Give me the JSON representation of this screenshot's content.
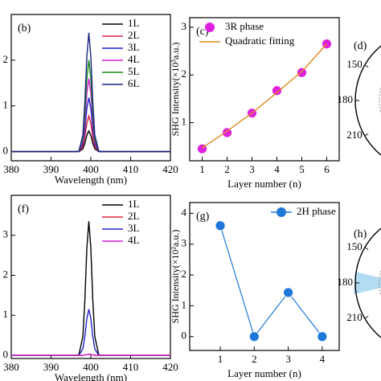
{
  "chart_data": [
    {
      "type": "line",
      "panel_label": "(b)",
      "xlabel": "Wavelength (nm)",
      "x": [
        380,
        396,
        397,
        398,
        398.5,
        399,
        399.5,
        400,
        400.5,
        401,
        402,
        403,
        420
      ],
      "xlim": [
        380,
        420
      ],
      "xticks": [
        380,
        390,
        400,
        410,
        420
      ],
      "ylim": [
        -0.2,
        3
      ],
      "yticks": [
        0,
        1,
        2
      ],
      "legend": "upper right",
      "series": [
        {
          "name": "1L",
          "color": "#000000",
          "values": [
            0,
            0,
            0,
            0.06,
            0.18,
            0.36,
            0.45,
            0.36,
            0.18,
            0.06,
            0,
            0,
            0
          ]
        },
        {
          "name": "2L",
          "color": "#e0203a",
          "values": [
            0,
            0,
            0,
            0.11,
            0.32,
            0.62,
            0.78,
            0.62,
            0.32,
            0.11,
            0,
            0,
            0
          ]
        },
        {
          "name": "3L",
          "color": "#2020c8",
          "values": [
            0,
            0,
            0,
            0.17,
            0.48,
            0.94,
            1.18,
            0.94,
            0.48,
            0.17,
            0,
            0,
            0
          ]
        },
        {
          "name": "4L",
          "color": "#d020d0",
          "values": [
            0,
            0,
            0.01,
            0.22,
            0.66,
            1.28,
            1.6,
            1.28,
            0.66,
            0.22,
            0.01,
            0,
            0
          ]
        },
        {
          "name": "5L",
          "color": "#1a8a1a",
          "values": [
            0,
            0,
            0.01,
            0.28,
            0.82,
            1.6,
            2.0,
            1.6,
            0.82,
            0.28,
            0.01,
            0,
            0
          ]
        },
        {
          "name": "6L",
          "color": "#1a237e",
          "values": [
            0,
            0,
            0.01,
            0.36,
            1.07,
            2.08,
            2.6,
            2.08,
            1.07,
            0.36,
            0.01,
            0,
            0
          ]
        }
      ]
    },
    {
      "type": "line",
      "panel_label": "(c)",
      "xlabel": "Layer number (n)",
      "ylabel": "SHG Intensity(×10³a.u.)",
      "x": [
        1,
        2,
        3,
        4,
        5,
        6
      ],
      "xlim": [
        0.5,
        6.5
      ],
      "xticks": [
        1,
        2,
        3,
        4,
        5,
        6
      ],
      "ylim": [
        0.2,
        3.2
      ],
      "yticks": [
        1,
        2,
        3
      ],
      "legend": "upper left",
      "series": [
        {
          "name": "3R phase",
          "color": "#e020e0",
          "markers": true,
          "line": false,
          "values": [
            0.45,
            0.79,
            1.2,
            1.67,
            2.05,
            2.65
          ]
        },
        {
          "name": "Quadratic fitting",
          "color": "#e08a1e",
          "markers": false,
          "line": true,
          "values": [
            0.47,
            0.82,
            1.2,
            1.63,
            2.07,
            2.65
          ]
        }
      ]
    },
    {
      "type": "polar",
      "panel_label": "(d)",
      "angle_ticks": [
        150,
        180,
        210
      ],
      "fill": false
    },
    {
      "type": "line",
      "panel_label": "(f)",
      "xlabel": "Wavelength (nm)",
      "x": [
        380,
        396,
        397,
        398,
        398.5,
        399,
        399.5,
        400,
        400.5,
        401,
        402,
        403,
        420
      ],
      "xlim": [
        380,
        420
      ],
      "xticks": [
        380,
        390,
        400,
        410,
        420
      ],
      "ylim": [
        -0.08,
        4
      ],
      "yticks": [
        0,
        1,
        2,
        3
      ],
      "legend": "upper right",
      "series": [
        {
          "name": "1L",
          "color": "#000000",
          "values": [
            0,
            0,
            0.01,
            0.47,
            1.37,
            2.68,
            3.35,
            2.68,
            1.37,
            0.47,
            0.01,
            0,
            0
          ]
        },
        {
          "name": "2L",
          "color": "#e0203a",
          "values": [
            0,
            0,
            0,
            0,
            0.01,
            0.02,
            0.03,
            0.02,
            0.01,
            0,
            0,
            0,
            0
          ]
        },
        {
          "name": "3L",
          "color": "#2020c8",
          "values": [
            0,
            0,
            0,
            0.16,
            0.47,
            0.92,
            1.15,
            0.92,
            0.47,
            0.16,
            0,
            0,
            0
          ]
        },
        {
          "name": "4L",
          "color": "#d020d0",
          "values": [
            0,
            0,
            0,
            0,
            0.01,
            0.02,
            0.02,
            0.02,
            0.01,
            0,
            0,
            0,
            0
          ]
        }
      ]
    },
    {
      "type": "line",
      "panel_label": "(g)",
      "xlabel": "Layer number (n)",
      "ylabel": "SHG Intensity(×10²a.u.)",
      "x": [
        1,
        2,
        3,
        4
      ],
      "xlim": [
        0.1,
        4.5
      ],
      "xticks": [
        1,
        2,
        3,
        4
      ],
      "ylim": [
        -0.45,
        4.35
      ],
      "yticks": [
        0,
        1,
        2,
        3,
        4
      ],
      "legend": "upper right",
      "series": [
        {
          "name": "2H phase",
          "color": "#1e78d8",
          "markers": true,
          "line": true,
          "values": [
            3.6,
            0,
            1.43,
            0
          ]
        }
      ]
    },
    {
      "type": "polar",
      "panel_label": "(h)",
      "angle_ticks": [
        150,
        180,
        210
      ],
      "fill": true
    }
  ]
}
